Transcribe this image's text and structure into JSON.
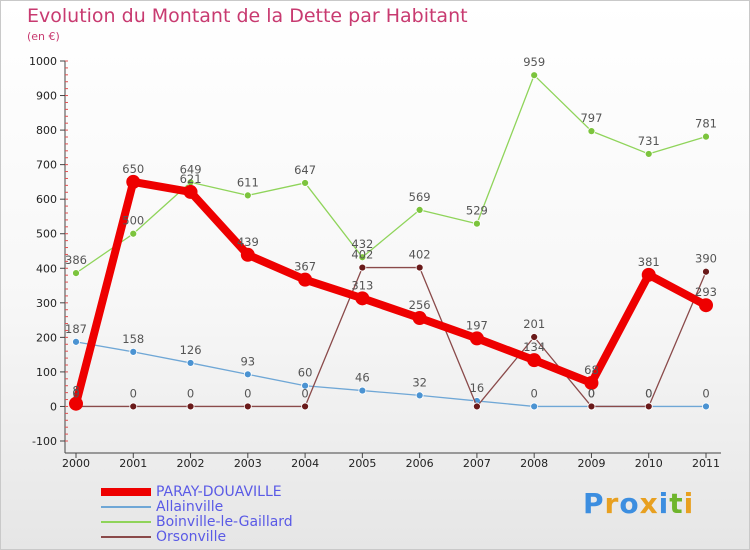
{
  "title": "Evolution du Montant de la Dette par Habitant",
  "subtitle": "(en €)",
  "brand": {
    "text": "Proxiti",
    "letters": [
      {
        "ch": "P",
        "color": "#3c8ee0"
      },
      {
        "ch": "r",
        "color": "#e8a020"
      },
      {
        "ch": "o",
        "color": "#3c8ee0"
      },
      {
        "ch": "x",
        "color": "#e8a020"
      },
      {
        "ch": "i",
        "color": "#3c8ee0"
      },
      {
        "ch": "t",
        "color": "#6fb52c"
      },
      {
        "ch": "i",
        "color": "#e8a020"
      }
    ]
  },
  "chart_data": {
    "type": "line",
    "x": [
      "2000",
      "2001",
      "2002",
      "2003",
      "2004",
      "2005",
      "2006",
      "2007",
      "2008",
      "2009",
      "2010",
      "2011"
    ],
    "y_ticks": [
      "-100",
      "0",
      "100",
      "200",
      "300",
      "400",
      "500",
      "600",
      "700",
      "800",
      "900",
      "1000"
    ],
    "ylim": [
      -100,
      1000
    ],
    "legend_position": "bottom-left",
    "grid": false,
    "series": [
      {
        "name": "Boinville-le-Gaillard",
        "color": "#8fd45a",
        "marker": "#7cc43d",
        "values": [
          386,
          500,
          649,
          611,
          647,
          432,
          569,
          529,
          959,
          797,
          731,
          781
        ],
        "labels": [
          "386",
          "500",
          "649",
          "611",
          "647",
          "432",
          "569",
          "529",
          "959",
          "797",
          "731",
          "781"
        ]
      },
      {
        "name": "Allainville",
        "color": "#6fa7d6",
        "marker": "#4b93d2",
        "values": [
          187,
          158,
          126,
          93,
          60,
          46,
          32,
          16,
          0,
          0,
          0,
          0
        ],
        "labels": [
          "187",
          "158",
          "126",
          "93",
          "60",
          "46",
          "32",
          "16",
          "0",
          "0",
          "0",
          "0"
        ]
      },
      {
        "name": "Orsonville",
        "color": "#8a4a4a",
        "marker": "#6a1a1a",
        "values": [
          0,
          0,
          0,
          0,
          0,
          402,
          402,
          0,
          201,
          0,
          0,
          390
        ],
        "labels": [
          "0",
          "0",
          "0",
          "0",
          "0",
          "402",
          "402",
          "",
          "201",
          "0",
          "0",
          "390"
        ]
      },
      {
        "name": "PARAY-DOUAVILLE",
        "color": "#ee0000",
        "marker": "#ee0000",
        "bold": true,
        "values": [
          8,
          650,
          621,
          439,
          367,
          313,
          256,
          197,
          134,
          68,
          381,
          293
        ],
        "labels": [
          "8",
          "650",
          "621",
          "439",
          "367",
          "313",
          "256",
          "197",
          "134",
          "68",
          "381",
          "293"
        ]
      }
    ],
    "legend_order": [
      "PARAY-DOUAVILLE",
      "Allainville",
      "Boinville-le-Gaillard",
      "Orsonville"
    ]
  }
}
